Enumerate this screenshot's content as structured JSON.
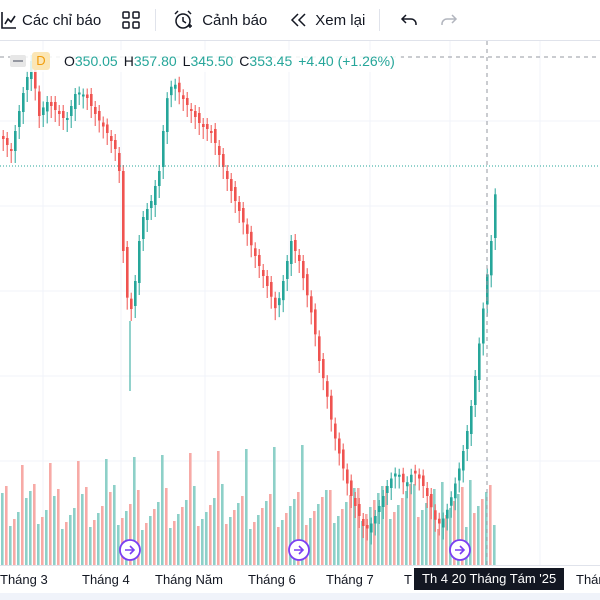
{
  "toolbar": {
    "indicators_label": "Các chỉ báo",
    "alerts_label": "Cảnh báo",
    "replay_label": "Xem lại"
  },
  "legend": {
    "interval": "D",
    "open_label": "O",
    "open": "350.05",
    "high_label": "H",
    "high": "357.80",
    "low_label": "L",
    "low": "345.50",
    "close_label": "C",
    "close": "353.45",
    "change": "+4.40 (+1.26%)"
  },
  "x_axis": {
    "labels": [
      "Tháng 3",
      "Tháng 4",
      "Tháng Năm",
      "Tháng 6",
      "Tháng 7",
      "T",
      "Thán"
    ],
    "crosshair_label": "Th 4 20 Tháng Tám '25"
  },
  "colors": {
    "up": "#26a69a",
    "down": "#ef5350",
    "up_volume": "#8dd0c8",
    "down_volume": "#f7aaa6",
    "event_icon": "#7b3ff2",
    "grid": "#f0f3fa",
    "text": "#131722"
  },
  "icons": {
    "indicators": "indicators-icon",
    "layouts": "grid-layout-icon",
    "alerts": "alarm-clock-icon",
    "replay": "rewind-icon",
    "undo": "undo-icon",
    "redo": "redo-icon",
    "event": "event-marker-icon"
  }
}
